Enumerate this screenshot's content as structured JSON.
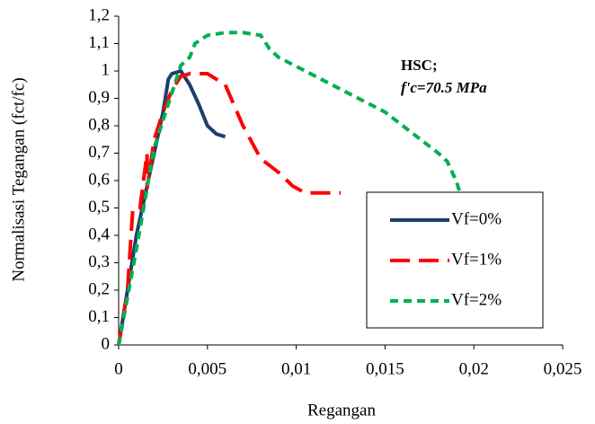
{
  "chart_data": {
    "type": "line",
    "x_label": "Regangan",
    "y_label": "Normalisasi Tegangan (fct/fc)",
    "annotations": [
      "HSC;",
      "f'c=70.5 MPa"
    ],
    "xlim": [
      0,
      0.025
    ],
    "ylim": [
      0,
      1.2
    ],
    "xticks": [
      0,
      {
        "value": 0.005,
        "label": "0,005"
      },
      {
        "value": 0.01,
        "label": "0,01"
      },
      {
        "value": 0.015,
        "label": "0,015"
      },
      {
        "value": 0.02,
        "label": "0,02"
      },
      {
        "value": 0.025,
        "label": "0,025"
      }
    ],
    "yticks": [
      0,
      {
        "value": 0.1,
        "label": "0,1"
      },
      {
        "value": 0.2,
        "label": "0,2"
      },
      {
        "value": 0.3,
        "label": "0,3"
      },
      {
        "value": 0.4,
        "label": "0,4"
      },
      {
        "value": 0.5,
        "label": "0,5"
      },
      {
        "value": 0.6,
        "label": "0,6"
      },
      {
        "value": 0.7,
        "label": "0,7"
      },
      {
        "value": 0.8,
        "label": "0,8"
      },
      {
        "value": 0.9,
        "label": "0,9"
      },
      1,
      {
        "value": 1.1,
        "label": "1,1"
      },
      {
        "value": 1.2,
        "label": "1,2"
      }
    ],
    "grid": false,
    "legend_position": "lower right",
    "series": [
      {
        "name": "Vf=0%",
        "color": "#1f3d6e",
        "line_style": "solid",
        "x": [
          0,
          0.0005,
          0.001,
          0.0015,
          0.002,
          0.0025,
          0.0028,
          0.003,
          0.0035,
          0.004,
          0.0045,
          0.005,
          0.0055,
          0.006
        ],
        "values": [
          0,
          0.2,
          0.4,
          0.55,
          0.7,
          0.85,
          0.97,
          0.99,
          1.0,
          0.95,
          0.88,
          0.8,
          0.77,
          0.76
        ]
      },
      {
        "name": "Vf=1%",
        "color": "#ff0000",
        "line_style": "dash",
        "x": [
          0,
          0.0005,
          0.0008,
          0.0012,
          0.0016,
          0.0016,
          0.002,
          0.0025,
          0.003,
          0.0035,
          0.004,
          0.005,
          0.006,
          0.007,
          0.008,
          0.009,
          0.0098,
          0.0105,
          0.012,
          0.0125
        ],
        "values": [
          0,
          0.2,
          0.5,
          0.5,
          0.7,
          0.57,
          0.75,
          0.85,
          0.93,
          0.98,
          0.99,
          0.99,
          0.95,
          0.8,
          0.68,
          0.63,
          0.58,
          0.555,
          0.555,
          0.555
        ]
      },
      {
        "name": "Vf=2%",
        "color": "#00b050",
        "line_style": "dot",
        "x": [
          0,
          0.001,
          0.002,
          0.003,
          0.0035,
          0.004,
          0.0043,
          0.005,
          0.006,
          0.007,
          0.008,
          0.0085,
          0.009,
          0.012,
          0.015,
          0.018,
          0.0185,
          0.019,
          0.0192
        ],
        "values": [
          0,
          0.35,
          0.72,
          0.92,
          1.02,
          1.05,
          1.1,
          1.13,
          1.14,
          1.14,
          1.13,
          1.08,
          1.05,
          0.95,
          0.85,
          0.7,
          0.67,
          0.6,
          0.56
        ]
      }
    ]
  }
}
